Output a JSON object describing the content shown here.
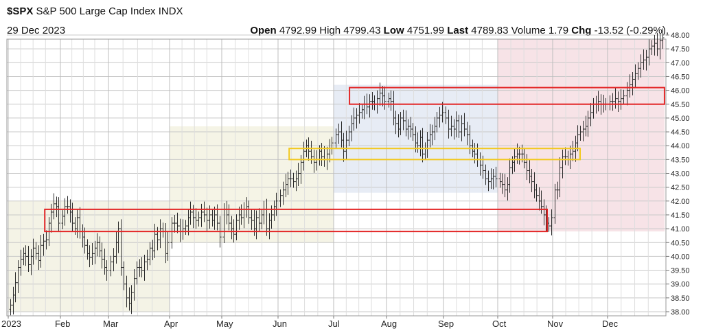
{
  "header": {
    "symbol": "$SPX",
    "name": "S&P 500 Large Cap Index INDX",
    "date": "29 Dec 2023",
    "open_label": "Open",
    "open_value": "4792.99",
    "high_label": "High",
    "high_value": "4799.43",
    "low_label": "Low",
    "low_value": "4751.99",
    "last_label": "Last",
    "last_value": "4789.83",
    "volume_label": "Volume",
    "volume_value": "1.79",
    "chg_label": "Chg",
    "chg_value": "-13.52 (-0.29%),"
  },
  "chart_data": {
    "type": "ohlc",
    "y_scale_note": "axis labels are index/100",
    "ylim": [
      38.0,
      48.0
    ],
    "y_ticks": [
      "48.00",
      "47.50",
      "47.00",
      "46.50",
      "46.00",
      "45.50",
      "45.00",
      "44.50",
      "44.00",
      "43.50",
      "43.00",
      "42.50",
      "42.00",
      "41.50",
      "41.00",
      "40.50",
      "40.00",
      "39.50",
      "39.00",
      "38.50",
      "38.00"
    ],
    "x_labels": [
      "2023",
      "Feb",
      "Mar",
      "Apr",
      "May",
      "Jun",
      "Jul",
      "Aug",
      "Sep",
      "Oct",
      "Nov",
      "Dec"
    ],
    "grid": true,
    "closes_by_month": {
      "Jan": [
        38.24,
        38.6,
        39.05,
        39.6,
        39.9,
        40.1,
        40.0,
        39.7,
        40.0,
        40.3,
        40.1,
        39.85,
        40.4,
        40.55,
        40.6,
        41.2,
        41.6,
        41.9,
        41.8,
        41.2
      ],
      "Feb": [
        41.45,
        41.8,
        41.8,
        41.6,
        41.2,
        41.0,
        41.4,
        40.9,
        40.7,
        40.4,
        40.1,
        39.95,
        40.1,
        40.3,
        40.5,
        40.2,
        39.9,
        39.6,
        39.5
      ],
      "Mar": [
        39.8,
        40.0,
        40.5,
        41.0,
        39.6,
        39.0,
        38.5,
        38.3,
        38.7,
        39.2,
        39.6,
        39.6,
        39.5,
        39.8,
        39.9,
        40.3,
        40.2,
        40.8,
        40.6,
        41.0,
        40.9,
        40.1,
        40.5
      ],
      "Apr": [
        41.2,
        41.2,
        41.1,
        40.9,
        41.0,
        41.1,
        41.4,
        41.6,
        41.4,
        41.3,
        41.4,
        41.6,
        41.5,
        41.3,
        41.5,
        41.3,
        41.5,
        41.2,
        40.7
      ],
      "May": [
        41.7,
        41.5,
        41.2,
        41.0,
        40.8,
        41.3,
        41.5,
        41.4,
        41.7,
        41.8,
        41.4,
        41.3,
        41.0,
        41.4,
        41.2,
        41.5,
        41.7,
        41.0,
        41.3,
        41.5,
        41.8,
        42.0
      ],
      "Jun": [
        42.2,
        42.4,
        42.6,
        42.8,
        42.8,
        42.7,
        42.8,
        43.0,
        43.4,
        43.8,
        44.0,
        43.8,
        43.6,
        43.4,
        43.5,
        43.8,
        43.6,
        43.5,
        43.7,
        43.9,
        44.1
      ],
      "Jul": [
        44.4,
        44.5,
        44.2,
        43.8,
        44.2,
        44.5,
        44.8,
        45.0,
        45.1,
        45.2,
        45.3,
        45.5,
        45.4,
        45.6,
        45.6,
        45.5,
        45.7,
        45.9,
        45.8,
        45.6
      ],
      "Aug": [
        45.7,
        45.6,
        45.0,
        44.8,
        44.6,
        45.0,
        44.9,
        44.6,
        44.7,
        44.6,
        44.4,
        44.1,
        44.0,
        44.3,
        43.7,
        43.9,
        44.2,
        44.4,
        44.5,
        44.7,
        45.0,
        45.1,
        45.2
      ],
      "Sep": [
        45.0,
        44.6,
        44.7,
        44.6,
        44.9,
        44.5,
        44.8,
        44.6,
        44.4,
        44.0,
        43.8,
        43.7,
        43.5,
        43.3,
        43.1,
        42.8,
        42.7,
        42.8,
        42.9,
        42.8
      ],
      "Oct": [
        42.7,
        42.6,
        42.4,
        42.6,
        43.2,
        43.4,
        43.6,
        43.7,
        43.7,
        43.7,
        43.4,
        43.1,
        42.9,
        42.7,
        42.4,
        42.2,
        42.0,
        41.8,
        41.5,
        41.2,
        41.1,
        41.4
      ],
      "Nov": [
        42.4,
        42.4,
        43.2,
        43.6,
        43.6,
        43.5,
        43.7,
        43.8,
        44.1,
        44.4,
        44.5,
        44.6,
        44.7,
        45.0,
        45.2,
        45.5,
        45.5,
        45.6,
        45.5,
        45.5,
        45.5
      ],
      "Dec": [
        45.6,
        45.6,
        45.7,
        45.6,
        45.7,
        45.8,
        46.0,
        46.2,
        46.4,
        46.6,
        46.8,
        47.0,
        47.1,
        47.2,
        47.5,
        47.6,
        47.7,
        47.5,
        47.8,
        47.9
      ]
    },
    "zones": [
      {
        "from": "Jan",
        "to": "Mar",
        "ymin": 38.0,
        "ymax": 42.0,
        "color": "#f4f3e6"
      },
      {
        "from": "Apr",
        "to": "Jun",
        "ymin": 40.5,
        "ymax": 44.7,
        "color": "#f5f4e6"
      },
      {
        "from": "Jul",
        "to": "Sep",
        "ymin": 42.3,
        "ymax": 46.2,
        "color": "#e7ecf5"
      },
      {
        "from": "Oct",
        "to": "Dec",
        "ymin": 40.9,
        "ymax": 48.0,
        "color": "#f7e3e7"
      }
    ],
    "boxes": [
      {
        "x_from": 0.7,
        "x_to": 9.9,
        "ymin": 40.9,
        "ymax": 41.7,
        "color": "#e32626"
      },
      {
        "x_from": 5.2,
        "x_to": 10.5,
        "ymin": 43.5,
        "ymax": 43.9,
        "color": "#f2c81d"
      },
      {
        "x_from": 6.3,
        "x_to": 12.0,
        "ymin": 45.5,
        "ymax": 46.1,
        "color": "#e32626"
      }
    ]
  }
}
